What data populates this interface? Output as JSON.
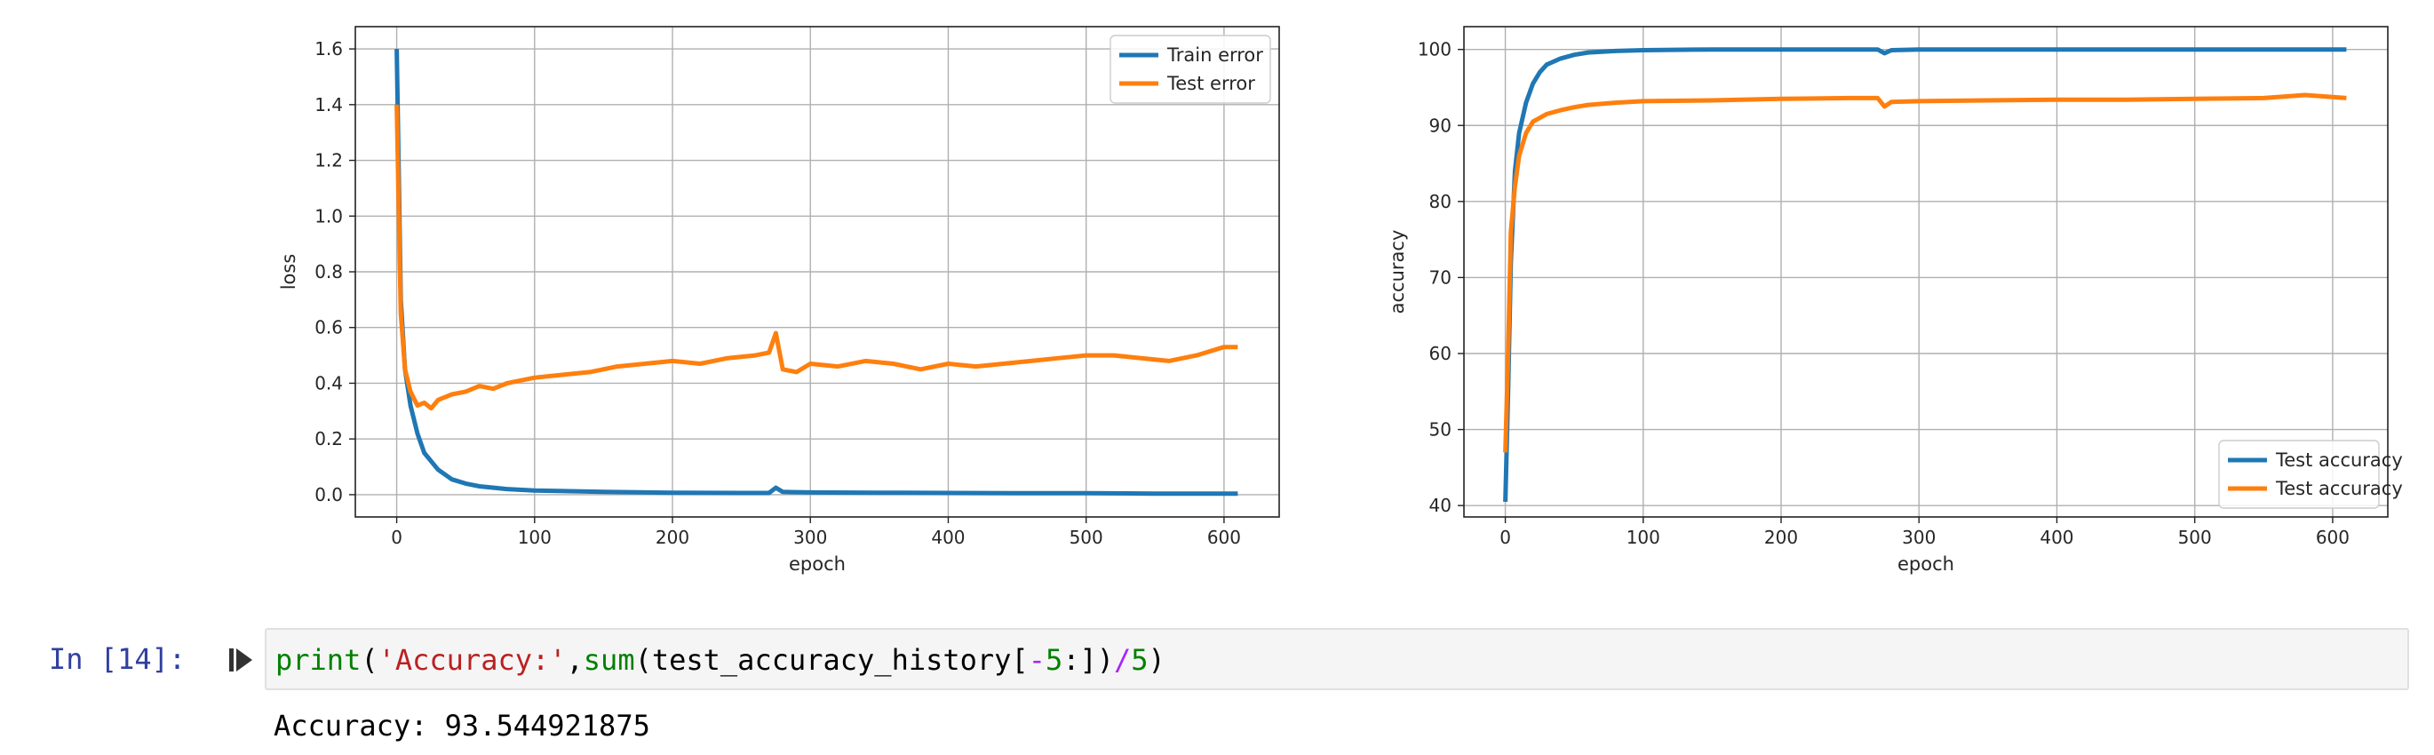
{
  "notebook": {
    "cell_prompt": "In [14]:",
    "code_tokens": [
      {
        "text": "print",
        "kind": "builtin"
      },
      {
        "text": "(",
        "kind": "plain"
      },
      {
        "text": "'Accuracy:'",
        "kind": "string"
      },
      {
        "text": ",",
        "kind": "plain"
      },
      {
        "text": "sum",
        "kind": "builtin"
      },
      {
        "text": "(test_accuracy_history[",
        "kind": "plain"
      },
      {
        "text": "-",
        "kind": "op"
      },
      {
        "text": "5",
        "kind": "num"
      },
      {
        "text": ":])",
        "kind": "plain"
      },
      {
        "text": "/",
        "kind": "op"
      },
      {
        "text": "5",
        "kind": "num"
      },
      {
        "text": ")",
        "kind": "plain"
      }
    ],
    "output_text": "Accuracy: 93.544921875",
    "run_icon": "step-forward-icon"
  },
  "chart_data": [
    {
      "type": "line",
      "xlabel": "epoch",
      "ylabel": "loss",
      "xlim": [
        -30,
        640
      ],
      "ylim": [
        -0.08,
        1.68
      ],
      "xticks": [
        0,
        100,
        200,
        300,
        400,
        500,
        600
      ],
      "yticks": [
        0.0,
        0.2,
        0.4,
        0.6,
        0.8,
        1.0,
        1.2,
        1.4,
        1.6
      ],
      "grid": true,
      "legend_position": "top-right",
      "series": [
        {
          "name": "Train error",
          "color": "#1f77b4",
          "x": [
            0,
            3,
            6,
            10,
            15,
            20,
            30,
            40,
            50,
            60,
            80,
            100,
            150,
            200,
            250,
            270,
            275,
            280,
            300,
            350,
            400,
            450,
            500,
            550,
            610
          ],
          "y": [
            1.6,
            0.7,
            0.45,
            0.32,
            0.22,
            0.15,
            0.09,
            0.055,
            0.04,
            0.03,
            0.02,
            0.015,
            0.01,
            0.007,
            0.006,
            0.006,
            0.025,
            0.01,
            0.008,
            0.007,
            0.006,
            0.005,
            0.005,
            0.004,
            0.004
          ]
        },
        {
          "name": "Test error",
          "color": "#ff7f0e",
          "x": [
            0,
            3,
            6,
            10,
            15,
            20,
            25,
            30,
            40,
            50,
            60,
            70,
            80,
            90,
            100,
            120,
            140,
            160,
            180,
            200,
            220,
            240,
            260,
            270,
            275,
            280,
            290,
            300,
            320,
            340,
            360,
            380,
            400,
            420,
            440,
            460,
            480,
            500,
            520,
            540,
            560,
            580,
            600,
            610
          ],
          "y": [
            1.4,
            0.65,
            0.45,
            0.37,
            0.32,
            0.33,
            0.31,
            0.34,
            0.36,
            0.37,
            0.39,
            0.38,
            0.4,
            0.41,
            0.42,
            0.43,
            0.44,
            0.46,
            0.47,
            0.48,
            0.47,
            0.49,
            0.5,
            0.51,
            0.58,
            0.45,
            0.44,
            0.47,
            0.46,
            0.48,
            0.47,
            0.45,
            0.47,
            0.46,
            0.47,
            0.48,
            0.49,
            0.5,
            0.5,
            0.49,
            0.48,
            0.5,
            0.53,
            0.53
          ]
        }
      ]
    },
    {
      "type": "line",
      "xlabel": "epoch",
      "ylabel": "accuracy",
      "xlim": [
        -30,
        640
      ],
      "ylim": [
        38.5,
        103
      ],
      "xticks": [
        0,
        100,
        200,
        300,
        400,
        500,
        600
      ],
      "yticks": [
        40,
        50,
        60,
        70,
        80,
        90,
        100
      ],
      "grid": true,
      "legend_position": "bottom-right",
      "series": [
        {
          "name": "Test accuracy",
          "color": "#1f77b4",
          "x": [
            0,
            2,
            4,
            7,
            10,
            15,
            20,
            25,
            30,
            40,
            50,
            60,
            80,
            100,
            150,
            200,
            250,
            270,
            275,
            280,
            300,
            400,
            500,
            610
          ],
          "y": [
            40.5,
            55,
            72,
            84,
            89,
            93,
            95.5,
            97,
            98,
            98.8,
            99.3,
            99.6,
            99.8,
            99.9,
            100,
            100,
            100,
            100,
            99.5,
            99.9,
            100,
            100,
            100,
            100
          ]
        },
        {
          "name": "Test accuracy",
          "color": "#ff7f0e",
          "x": [
            0,
            2,
            4,
            7,
            10,
            15,
            20,
            25,
            30,
            40,
            50,
            60,
            80,
            100,
            150,
            200,
            250,
            270,
            275,
            280,
            300,
            350,
            400,
            450,
            500,
            550,
            580,
            610
          ],
          "y": [
            47,
            60,
            76,
            82,
            86,
            89,
            90.5,
            91,
            91.5,
            92,
            92.4,
            92.7,
            93,
            93.2,
            93.3,
            93.5,
            93.6,
            93.6,
            92.5,
            93.1,
            93.2,
            93.3,
            93.4,
            93.4,
            93.5,
            93.6,
            94,
            93.6
          ]
        }
      ]
    }
  ]
}
